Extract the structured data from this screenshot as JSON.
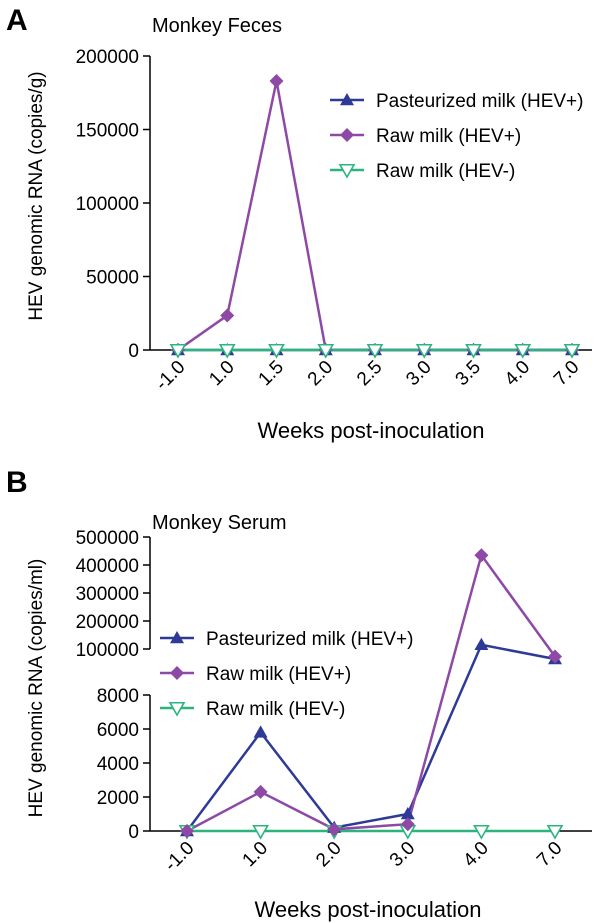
{
  "chart_data": [
    {
      "panel": "A",
      "type": "line",
      "title": "Monkey Feces",
      "xlabel": "Weeks post-inoculation",
      "ylabel": "HEV genomic RNA (copies/g)",
      "categories": [
        "-1.0",
        "1.0",
        "1.5",
        "2.0",
        "2.5",
        "3.0",
        "3.5",
        "4.0",
        "7.0"
      ],
      "ylim": [
        0,
        200000
      ],
      "yticks": [
        0,
        50000,
        100000,
        150000,
        200000
      ],
      "yticklabels": [
        "0",
        "50000",
        "100000",
        "150000",
        "200000"
      ],
      "legend_position": "top-right",
      "series": [
        {
          "name": "Pasteurized milk (HEV+)",
          "color": "#2e3a96",
          "marker": "triangle-up",
          "values": [
            0,
            0,
            0,
            0,
            0,
            0,
            0,
            0,
            0
          ]
        },
        {
          "name": "Raw milk (HEV+)",
          "color": "#8e49a6",
          "marker": "diamond",
          "values": [
            0,
            23500,
            183000,
            0,
            0,
            0,
            0,
            0,
            0
          ]
        },
        {
          "name": "Raw milk (HEV-)",
          "color": "#2db47e",
          "marker": "triangle-down-open",
          "values": [
            0,
            0,
            0,
            0,
            0,
            0,
            0,
            0,
            0
          ]
        }
      ]
    },
    {
      "panel": "B",
      "type": "line",
      "title": "Monkey Serum",
      "xlabel": "Weeks post-inoculation",
      "ylabel": "HEV genomic RNA (copies/ml)",
      "categories": [
        "-1.0",
        "1.0",
        "2.0",
        "3.0",
        "4.0",
        "7.0"
      ],
      "ylim": [
        0,
        500000
      ],
      "axis_break": {
        "lower": [
          0,
          8000
        ],
        "upper": [
          100000,
          500000
        ]
      },
      "yticks_lower": [
        0,
        2000,
        4000,
        6000,
        8000
      ],
      "yticks_upper": [
        100000,
        200000,
        300000,
        400000,
        500000
      ],
      "yticklabels_lower": [
        "0",
        "2000",
        "4000",
        "6000",
        "8000"
      ],
      "yticklabels_upper": [
        "100000",
        "200000",
        "300000",
        "400000",
        "500000"
      ],
      "legend_position": "left",
      "series": [
        {
          "name": "Pasteurized milk (HEV+)",
          "color": "#2e3a96",
          "marker": "triangle-up",
          "values": [
            0,
            5800,
            200,
            1000,
            115000,
            80000
          ]
        },
        {
          "name": "Raw milk (HEV+)",
          "color": "#8e49a6",
          "marker": "diamond",
          "values": [
            0,
            2300,
            100,
            400,
            435000,
            85000
          ]
        },
        {
          "name": "Raw milk (HEV-)",
          "color": "#2db47e",
          "marker": "triangle-down-open",
          "values": [
            0,
            0,
            0,
            0,
            0,
            0
          ]
        }
      ]
    }
  ]
}
